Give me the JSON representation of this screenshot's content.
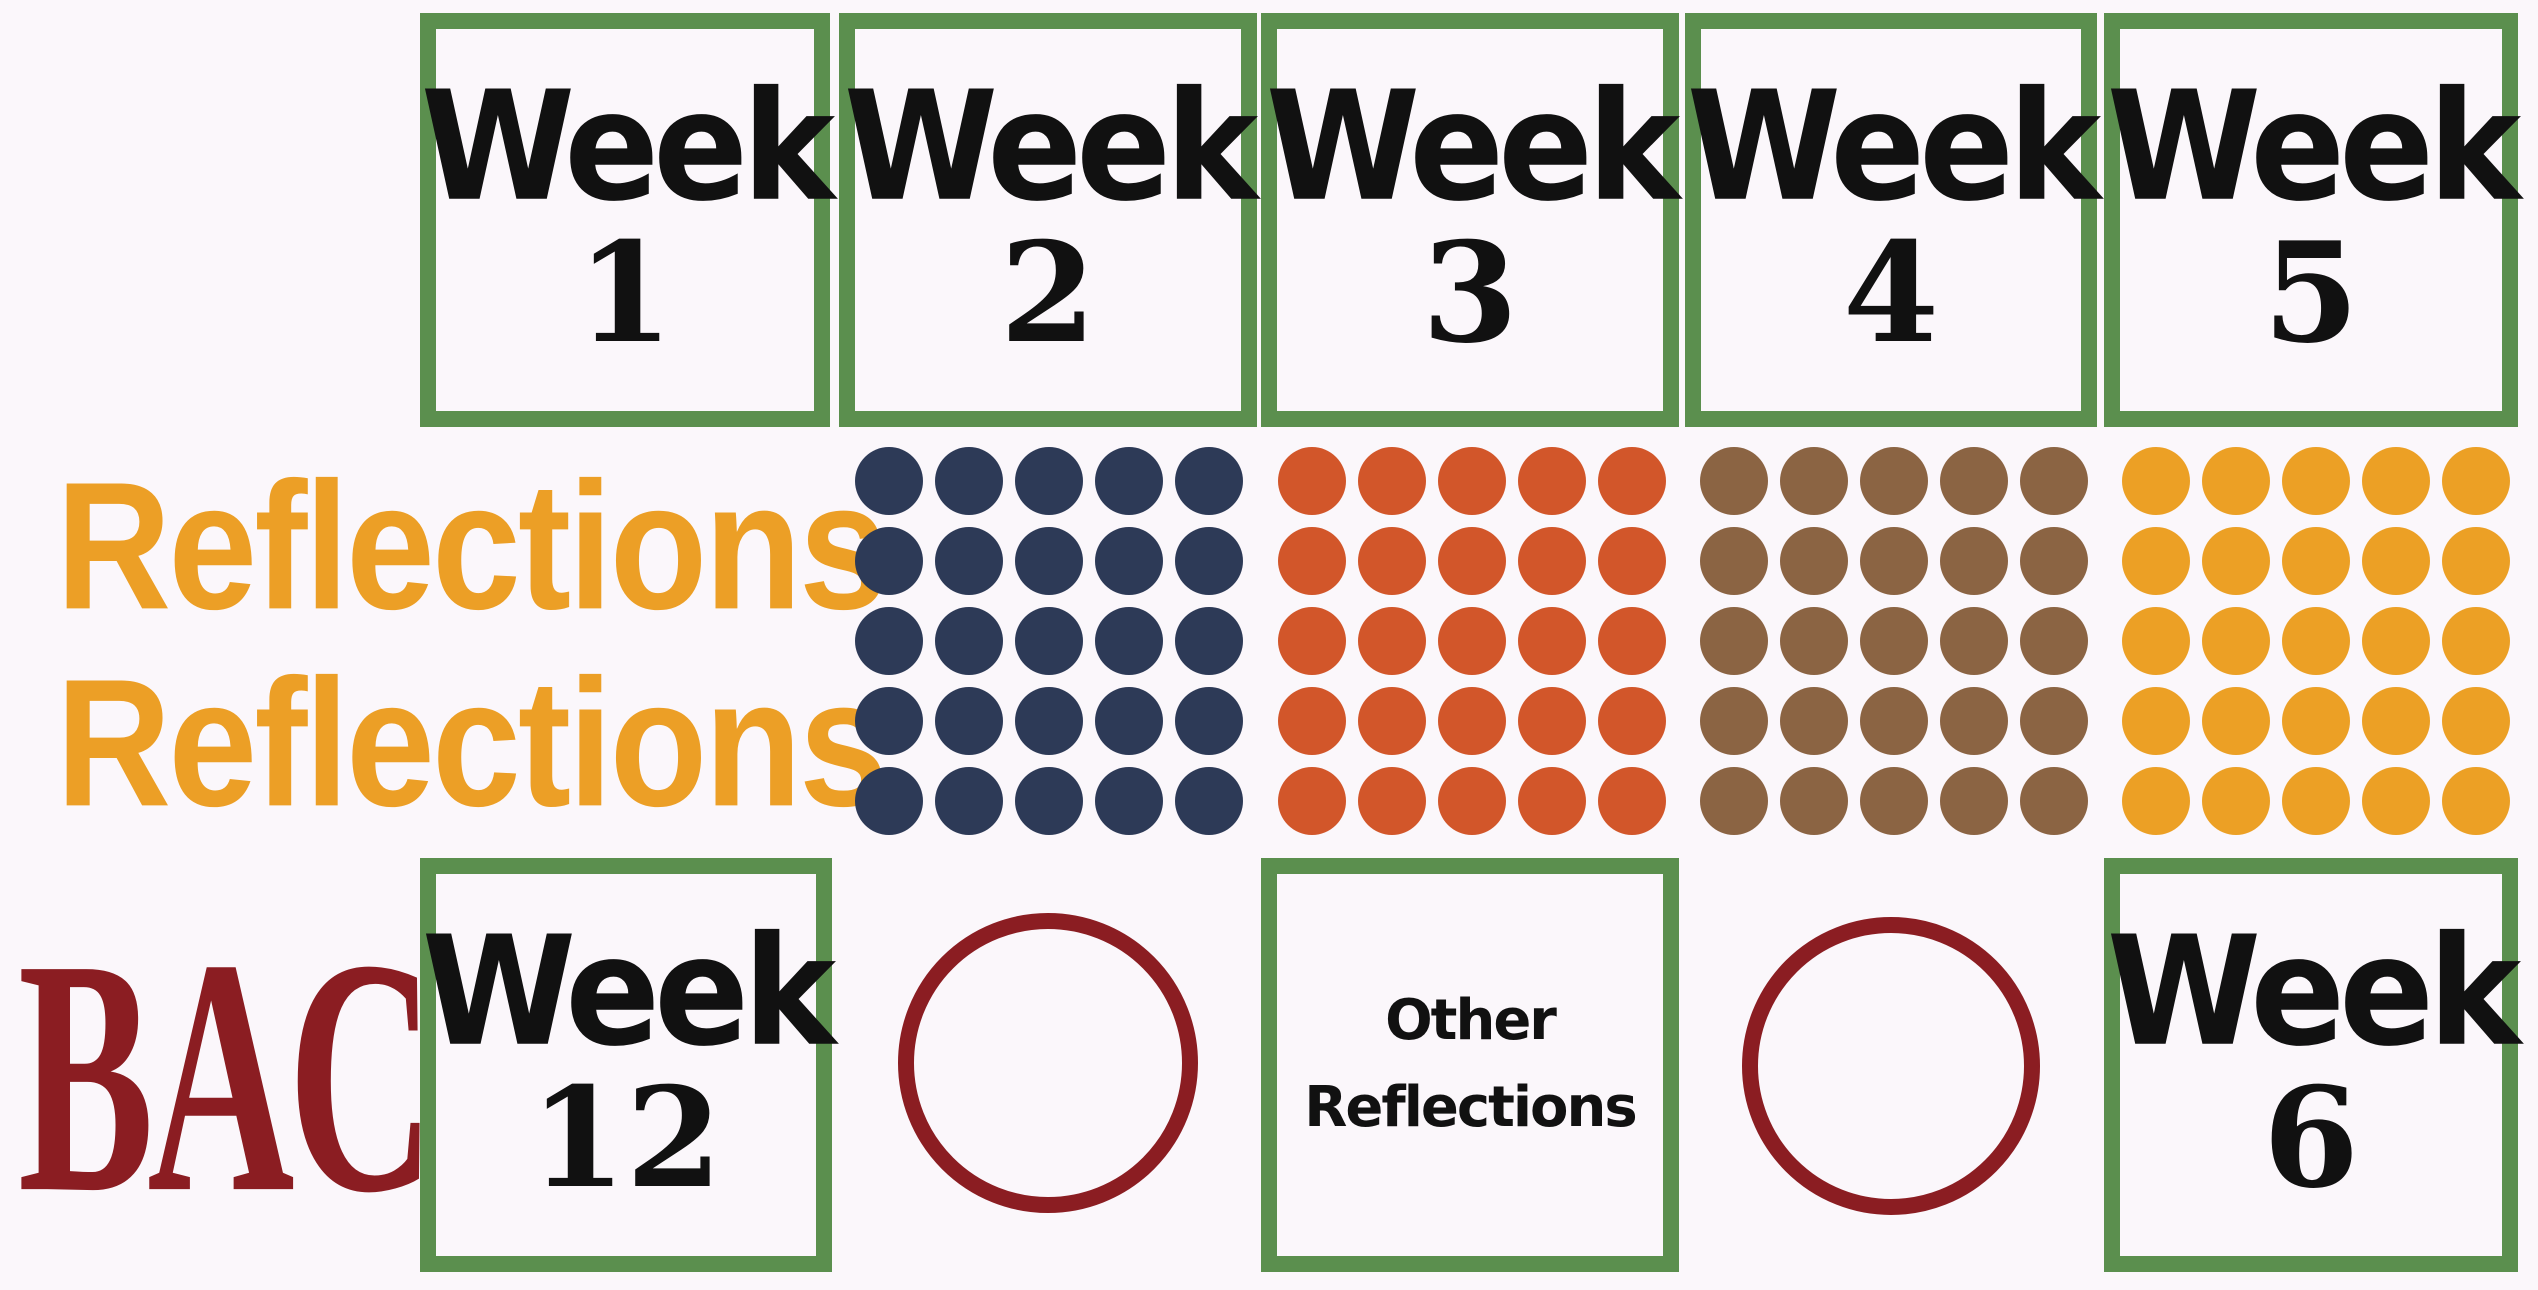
{
  "tiles_top": [
    {
      "word": "Week",
      "number": "1"
    },
    {
      "word": "Week",
      "number": "2"
    },
    {
      "word": "Week",
      "number": "3"
    },
    {
      "word": "Week",
      "number": "4"
    },
    {
      "word": "Week",
      "number": "5"
    }
  ],
  "tiles_bottom": {
    "week12": {
      "word": "Week",
      "number": "12"
    },
    "other": {
      "line1": "Other",
      "line2": "Reflections"
    },
    "week6": {
      "word": "Week",
      "number": "6"
    }
  },
  "reflections": {
    "line1": "Reflections",
    "line2": "Reflections"
  },
  "back_label": "BACK",
  "colors": {
    "background": "#fbf7fb",
    "tile_border": "#5b8f4e",
    "reflections_text": "#ec9f26",
    "back_text": "#8b1d22",
    "ring": "#8b1d22",
    "dots_navy": "#2d3a57",
    "dots_orange": "#d2562a",
    "dots_brown": "#8b6443",
    "dots_amber": "#eca025"
  },
  "dot_groups": [
    {
      "name": "navy",
      "color": "#2d3a57",
      "rows": 5,
      "cols": 5
    },
    {
      "name": "orange",
      "color": "#d2562a",
      "rows": 5,
      "cols": 5
    },
    {
      "name": "brown",
      "color": "#8b6443",
      "rows": 5,
      "cols": 5
    },
    {
      "name": "amber",
      "color": "#eca025",
      "rows": 5,
      "cols": 5
    }
  ]
}
